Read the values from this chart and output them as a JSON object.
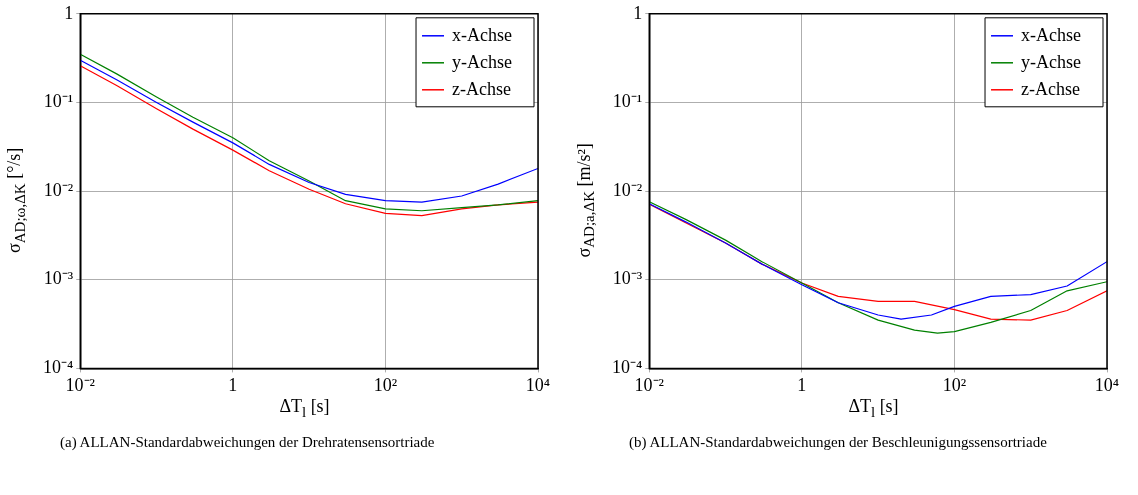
{
  "chart_data": [
    {
      "type": "line",
      "xlabel": "ΔT$_{l}$ [s]",
      "ylabel": "σ$_{AD;ω,ΔK}$ [°/s]",
      "annotations": [
        "(a) ALLAN-Standardabweichungen der Drehratensensortriade"
      ],
      "log": "xy",
      "grid": true,
      "legend": "top right",
      "xlim": [
        0.01,
        10000
      ],
      "ylim": [
        0.0001,
        1
      ],
      "xticks": [
        {
          "value": 0.01,
          "label": "10⁻²"
        },
        1,
        {
          "value": 100,
          "label": "10²"
        },
        {
          "value": 10000,
          "label": "10⁴"
        }
      ],
      "yticks": [
        {
          "value": 0.0001,
          "label": "10⁻⁴"
        },
        {
          "value": 0.001,
          "label": "10⁻³"
        },
        {
          "value": 0.01,
          "label": "10⁻²"
        },
        {
          "value": 0.1,
          "label": "10⁻¹"
        },
        1
      ],
      "series": [
        {
          "name": "x-Achse",
          "color": "#0000ff",
          "x": [
            0.01,
            0.03,
            0.1,
            0.3,
            1,
            3,
            10,
            30,
            100,
            300,
            1000,
            3000,
            10000
          ],
          "values": [
            0.3,
            0.18,
            0.1,
            0.06,
            0.035,
            0.02,
            0.0125,
            0.0092,
            0.0078,
            0.0075,
            0.0088,
            0.012,
            0.018
          ]
        },
        {
          "name": "y-Achse",
          "color": "#008000",
          "x": [
            0.01,
            0.03,
            0.1,
            0.3,
            1,
            3,
            10,
            30,
            100,
            300,
            1000,
            3000,
            10000
          ],
          "values": [
            0.35,
            0.21,
            0.115,
            0.068,
            0.04,
            0.022,
            0.013,
            0.0078,
            0.0063,
            0.006,
            0.0065,
            0.007,
            0.0078
          ]
        },
        {
          "name": "z-Achse",
          "color": "#ff0000",
          "x": [
            0.01,
            0.03,
            0.1,
            0.3,
            1,
            3,
            10,
            30,
            100,
            300,
            1000,
            3000,
            10000
          ],
          "values": [
            0.26,
            0.155,
            0.085,
            0.05,
            0.029,
            0.017,
            0.0105,
            0.0072,
            0.0056,
            0.0053,
            0.0063,
            0.007,
            0.0075
          ]
        }
      ]
    },
    {
      "type": "line",
      "xlabel": "ΔT$_{l}$ [s]",
      "ylabel": "σ$_{AD;a,ΔK}$ [m/s²]",
      "annotations": [
        "(b) ALLAN-Standardabweichungen der Beschleunigungssensortriade"
      ],
      "log": "xy",
      "grid": true,
      "legend": "top right",
      "xlim": [
        0.01,
        10000
      ],
      "ylim": [
        0.0001,
        1
      ],
      "xticks": [
        {
          "value": 0.01,
          "label": "10⁻²"
        },
        1,
        {
          "value": 100,
          "label": "10²"
        },
        {
          "value": 10000,
          "label": "10⁴"
        }
      ],
      "yticks": [
        {
          "value": 0.0001,
          "label": "10⁻⁴"
        },
        {
          "value": 0.001,
          "label": "10⁻³"
        },
        {
          "value": 0.01,
          "label": "10⁻²"
        },
        {
          "value": 0.1,
          "label": "10⁻¹"
        },
        1
      ],
      "series": [
        {
          "name": "x-Achse",
          "color": "#0000ff",
          "x": [
            0.01,
            0.03,
            0.1,
            0.3,
            1,
            3,
            10,
            20,
            50,
            100,
            300,
            1000,
            3000,
            10000
          ],
          "values": [
            0.0072,
            0.0045,
            0.0026,
            0.0015,
            0.00088,
            0.00055,
            0.0004,
            0.00036,
            0.0004,
            0.0005,
            0.00065,
            0.00068,
            0.00085,
            0.0016
          ]
        },
        {
          "name": "y-Achse",
          "color": "#008000",
          "x": [
            0.01,
            0.03,
            0.1,
            0.3,
            1,
            3,
            10,
            30,
            60,
            100,
            300,
            1000,
            3000,
            10000
          ],
          "values": [
            0.0076,
            0.0048,
            0.0028,
            0.0016,
            0.00092,
            0.00055,
            0.00035,
            0.00027,
            0.00025,
            0.00026,
            0.00033,
            0.00045,
            0.00075,
            0.00095
          ]
        },
        {
          "name": "z-Achse",
          "color": "#ff0000",
          "x": [
            0.01,
            0.03,
            0.1,
            0.3,
            1,
            3,
            10,
            30,
            100,
            300,
            1000,
            3000,
            10000
          ],
          "values": [
            0.0071,
            0.0044,
            0.0026,
            0.0015,
            0.00092,
            0.00065,
            0.00057,
            0.00057,
            0.00046,
            0.00036,
            0.00035,
            0.00045,
            0.00075
          ]
        }
      ]
    }
  ]
}
